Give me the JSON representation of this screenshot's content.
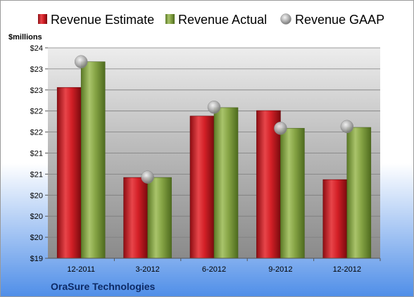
{
  "chart_data": {
    "type": "bar",
    "ylabel": "$millions",
    "footer": "OraSure Technologies",
    "categories": [
      "12-2011",
      "3-2012",
      "6-2012",
      "9-2012",
      "12-2012"
    ],
    "ylim": [
      19,
      24
    ],
    "yticks": [
      19,
      19.5,
      20,
      20.5,
      21,
      21.5,
      22,
      22.5,
      23,
      23.5,
      24
    ],
    "ytick_labels": [
      "$19",
      "$20",
      "$20",
      "$20",
      "$21",
      "$21",
      "$22",
      "$22",
      "$23",
      "$23",
      "$24"
    ],
    "grid": true,
    "legend": "top",
    "series": [
      {
        "name": "Revenue Estimate",
        "kind": "bar",
        "color": "#c0151b",
        "values": [
          23.06,
          20.92,
          22.38,
          22.51,
          20.87
        ]
      },
      {
        "name": "Revenue Actual",
        "kind": "bar",
        "color": "#7a9a3a",
        "values": [
          23.67,
          20.92,
          22.58,
          22.09,
          22.11
        ]
      },
      {
        "name": "Revenue GAAP",
        "kind": "marker",
        "color": "#a9a9a9",
        "values": [
          23.67,
          20.93,
          22.59,
          22.09,
          22.13
        ]
      }
    ]
  }
}
